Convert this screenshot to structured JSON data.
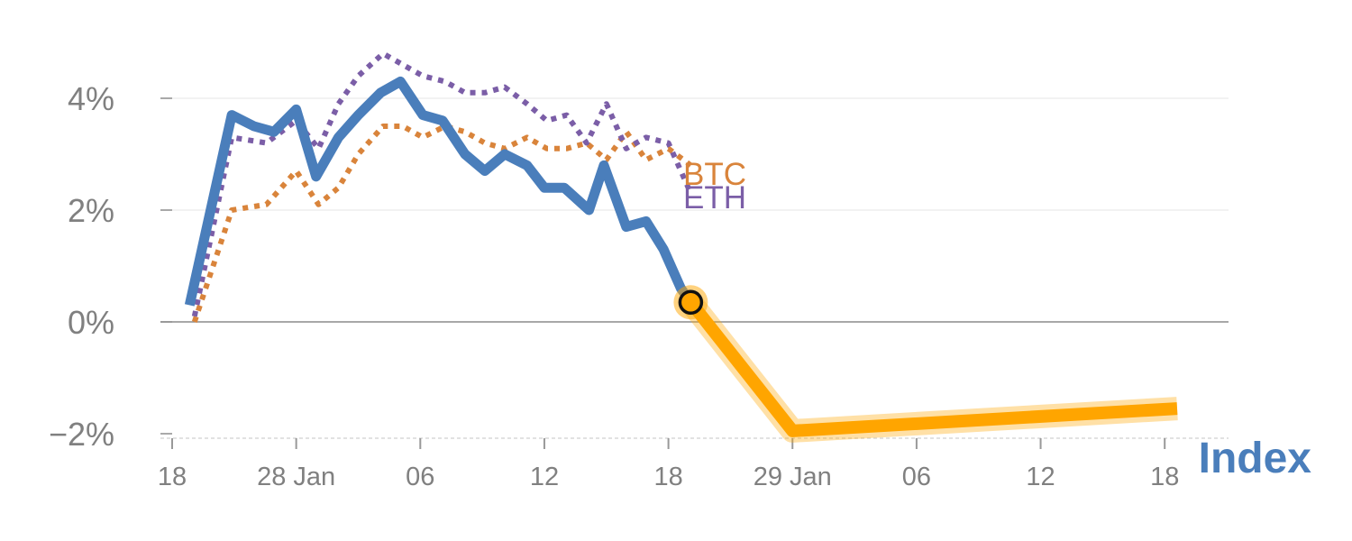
{
  "chart_data": {
    "type": "line",
    "ylim": [
      -2,
      5
    ],
    "y_ticks": [
      {
        "value": 4,
        "label": "4%"
      },
      {
        "value": 2,
        "label": "2%"
      },
      {
        "value": 0,
        "label": "0%"
      },
      {
        "value": -2,
        "label": "−2%"
      }
    ],
    "x_ticks": [
      {
        "index": 0,
        "label": "18"
      },
      {
        "index": 5,
        "label": "28 Jan"
      },
      {
        "index": 10,
        "label": "06"
      },
      {
        "index": 15,
        "label": "12"
      },
      {
        "index": 20,
        "label": "18"
      },
      {
        "index": 25,
        "label": "29 Jan"
      },
      {
        "index": 30,
        "label": "06"
      },
      {
        "index": 35,
        "label": "12"
      },
      {
        "index": 40,
        "label": "18"
      }
    ],
    "grid": true,
    "colors": {
      "index": "#4a7ebb",
      "btc": "#d9843b",
      "eth": "#7b5ea7",
      "forecast": "#ffa500",
      "axis_text": "#808080",
      "grid": "#e6e6e6",
      "zero_line": "#8c8c8c"
    },
    "series": [
      {
        "name": "Index",
        "style": "solid",
        "x": [
          0.7,
          2.4,
          3.3,
          4.1,
          5.0,
          5.8,
          6.7,
          7.5,
          8.4,
          9.2,
          10.1,
          10.9,
          11.8,
          12.6,
          13.4,
          14.3,
          15.0,
          15.8,
          16.8,
          17.4,
          18.3,
          19.1,
          19.8,
          20.5,
          20.9
        ],
        "y": [
          0.3,
          3.7,
          3.5,
          3.4,
          3.8,
          2.6,
          3.3,
          3.7,
          4.1,
          4.3,
          3.7,
          3.6,
          3.0,
          2.7,
          3.0,
          2.8,
          2.4,
          2.4,
          2.0,
          2.8,
          1.7,
          1.8,
          1.3,
          0.6,
          0.35
        ]
      },
      {
        "name": "BTC",
        "style": "dotted",
        "x": [
          0.9,
          2.4,
          3.8,
          5.0,
          5.9,
          6.7,
          7.5,
          8.5,
          9.3,
          10.1,
          11.0,
          11.8,
          12.6,
          13.4,
          14.3,
          15.1,
          15.9,
          16.7,
          17.5,
          18.3,
          19.1,
          20.0,
          20.9
        ],
        "y": [
          0.0,
          2.0,
          2.1,
          2.7,
          2.1,
          2.4,
          3.0,
          3.5,
          3.5,
          3.3,
          3.5,
          3.4,
          3.2,
          3.1,
          3.3,
          3.1,
          3.1,
          3.2,
          2.9,
          3.4,
          2.9,
          3.1,
          2.8
        ]
      },
      {
        "name": "ETH",
        "style": "dotted",
        "x": [
          0.9,
          2.4,
          3.8,
          5.0,
          5.9,
          6.7,
          7.5,
          8.5,
          9.3,
          10.1,
          11.0,
          11.8,
          12.6,
          13.4,
          14.3,
          15.1,
          15.9,
          16.7,
          17.5,
          18.3,
          19.1,
          20.0,
          20.9
        ],
        "y": [
          0.1,
          3.3,
          3.2,
          3.6,
          3.1,
          3.9,
          4.4,
          4.8,
          4.6,
          4.4,
          4.3,
          4.1,
          4.1,
          4.2,
          3.9,
          3.6,
          3.7,
          3.2,
          3.9,
          3.1,
          3.3,
          3.2,
          2.3
        ]
      },
      {
        "name": "",
        "style": "forecast",
        "x": [
          20.9,
          25.0,
          40.5
        ],
        "y": [
          0.35,
          -1.95,
          -1.55
        ]
      }
    ],
    "labels": {
      "btc": "BTC",
      "eth": "ETH",
      "index": "Index"
    }
  }
}
